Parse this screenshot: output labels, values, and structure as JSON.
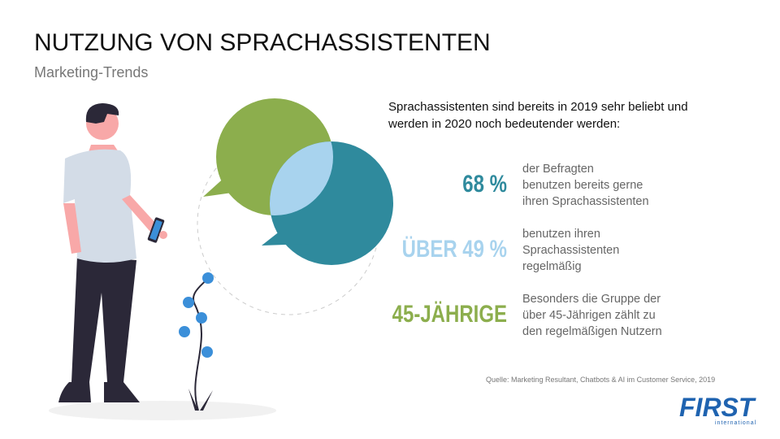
{
  "header": {
    "title": "NUTZUNG VON SPRACHASSISTENTEN",
    "subtitle": "Marketing-Trends"
  },
  "intro": [
    "Sprachassistenten sind bereits in 2019 sehr beliebt und",
    "werden in 2020 noch bedeutender werden:"
  ],
  "stats": [
    {
      "figure": "68 %",
      "color": "#2f8a9d",
      "lines": [
        "der Befragten",
        "benutzen bereits gerne",
        "ihren Sprachassistenten"
      ]
    },
    {
      "figure": "ÜBER 49 %",
      "color": "#a8d3ee",
      "lines": [
        "benutzen ihren",
        "Sprachassistenten",
        "regelmäßig"
      ]
    },
    {
      "figure": "45-JÄHRIGE",
      "color": "#8cae4d",
      "lines": [
        "Besonders die Gruppe der",
        "über 45-Jährigen zählt zu",
        "den regelmäßigen Nutzern"
      ]
    }
  ],
  "source": "Quelle: Marketing Resultant, Chatbots & AI im Customer Service, 2019",
  "logo": {
    "name": "FIRST",
    "tagline": "international"
  }
}
